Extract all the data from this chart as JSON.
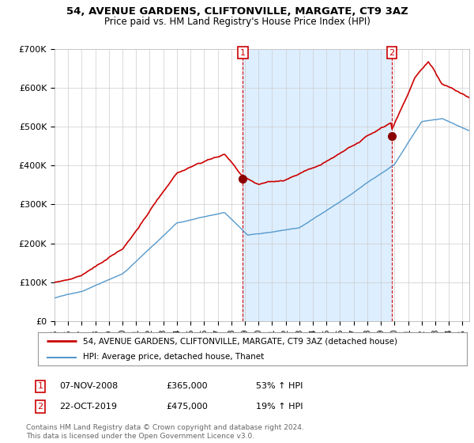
{
  "title": "54, AVENUE GARDENS, CLIFTONVILLE, MARGATE, CT9 3AZ",
  "subtitle": "Price paid vs. HM Land Registry's House Price Index (HPI)",
  "ylim": [
    0,
    700000
  ],
  "xlim_start": 1995.0,
  "xlim_end": 2025.5,
  "sale1_x": 2008.85,
  "sale1_price": 365000,
  "sale2_x": 2019.81,
  "sale2_price": 475000,
  "line_color_property": "#cc0000",
  "line_color_hpi": "#5599cc",
  "shade_color": "#ddeeff",
  "legend_property": "54, AVENUE GARDENS, CLIFTONVILLE, MARGATE, CT9 3AZ (detached house)",
  "legend_hpi": "HPI: Average price, detached house, Thanet",
  "table_rows": [
    {
      "num": "1",
      "date": "07-NOV-2008",
      "price": "£365,000",
      "change": "53% ↑ HPI"
    },
    {
      "num": "2",
      "date": "22-OCT-2019",
      "price": "£475,000",
      "change": "19% ↑ HPI"
    }
  ],
  "footnote": "Contains HM Land Registry data © Crown copyright and database right 2024.\nThis data is licensed under the Open Government Licence v3.0.",
  "background_color": "#ffffff",
  "grid_color": "#cccccc",
  "chart_bg": "#ffffff",
  "chart_bg_shade": "#ddeeff"
}
